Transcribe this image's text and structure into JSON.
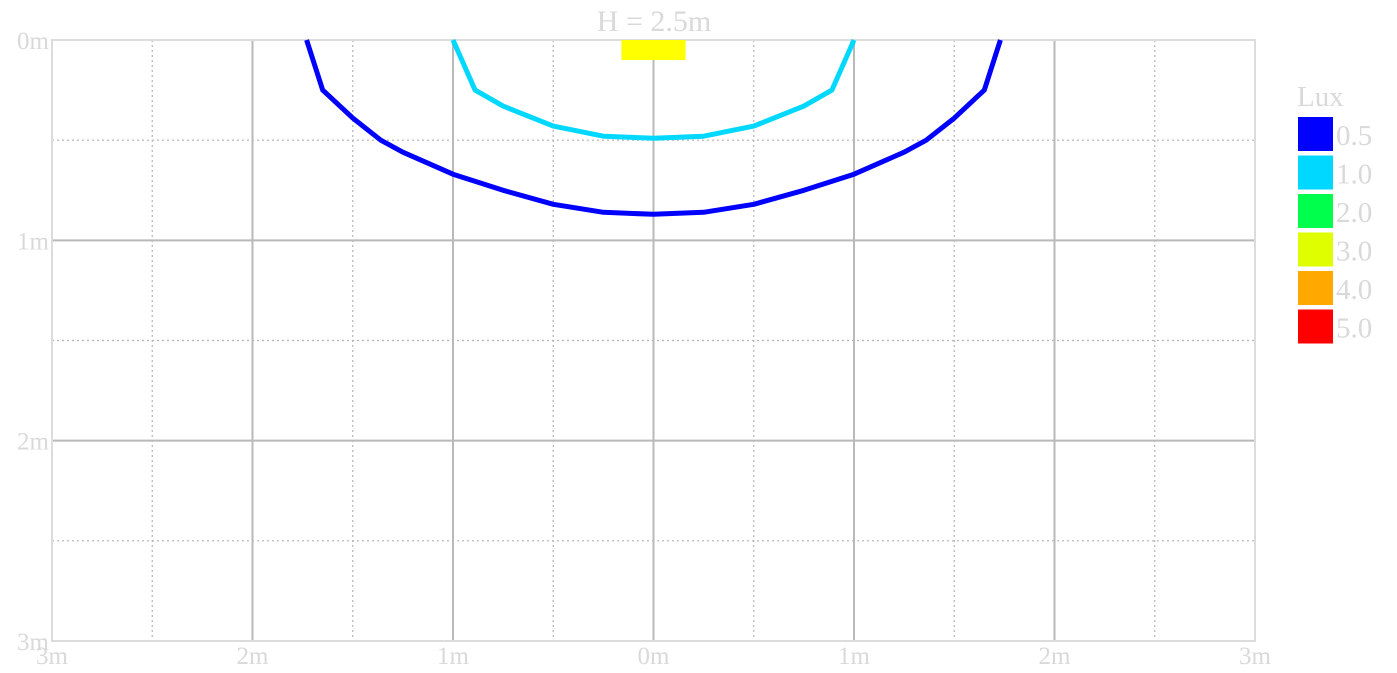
{
  "chart_data": {
    "type": "line",
    "title": "H = 2.5m",
    "x_ticks": [
      "3m",
      "2m",
      "1m",
      "0m",
      "1m",
      "2m",
      "3m"
    ],
    "y_ticks": [
      "0m",
      "1m",
      "2m",
      "3m"
    ],
    "xlim": [
      -3,
      3
    ],
    "ylim": [
      0,
      3
    ],
    "grid": true,
    "legend": {
      "title": "Lux",
      "placement": "right",
      "entries": [
        {
          "label": "0.5",
          "color": "#0000ff"
        },
        {
          "label": "1.0",
          "color": "#00d8ff"
        },
        {
          "label": "2.0",
          "color": "#00ff4c"
        },
        {
          "label": "3.0",
          "color": "#dfff00"
        },
        {
          "label": "4.0",
          "color": "#ffa800"
        },
        {
          "label": "5.0",
          "color": "#ff0000"
        }
      ]
    },
    "luminaire": {
      "x": [
        -0.16,
        0.16
      ],
      "depth": 0.1,
      "color": "#ffff00"
    },
    "series": [
      {
        "lux": 0.5,
        "color": "#0000ff",
        "points": [
          [
            -1.73,
            0.0
          ],
          [
            -1.65,
            0.25
          ],
          [
            -1.5,
            0.39
          ],
          [
            -1.36,
            0.5
          ],
          [
            -1.25,
            0.56
          ],
          [
            -1.0,
            0.67
          ],
          [
            -0.75,
            0.75
          ],
          [
            -0.5,
            0.82
          ],
          [
            -0.25,
            0.86
          ],
          [
            0.0,
            0.87
          ],
          [
            0.25,
            0.86
          ],
          [
            0.5,
            0.82
          ],
          [
            0.75,
            0.75
          ],
          [
            1.0,
            0.67
          ],
          [
            1.25,
            0.56
          ],
          [
            1.36,
            0.5
          ],
          [
            1.5,
            0.39
          ],
          [
            1.65,
            0.25
          ],
          [
            1.73,
            0.0
          ]
        ]
      },
      {
        "lux": 1.0,
        "color": "#00d8ff",
        "points": [
          [
            -1.0,
            0.0
          ],
          [
            -0.89,
            0.25
          ],
          [
            -0.75,
            0.33
          ],
          [
            -0.5,
            0.43
          ],
          [
            -0.25,
            0.48
          ],
          [
            0.0,
            0.49
          ],
          [
            0.25,
            0.48
          ],
          [
            0.5,
            0.43
          ],
          [
            0.75,
            0.33
          ],
          [
            0.89,
            0.25
          ],
          [
            1.0,
            0.0
          ]
        ]
      }
    ]
  }
}
